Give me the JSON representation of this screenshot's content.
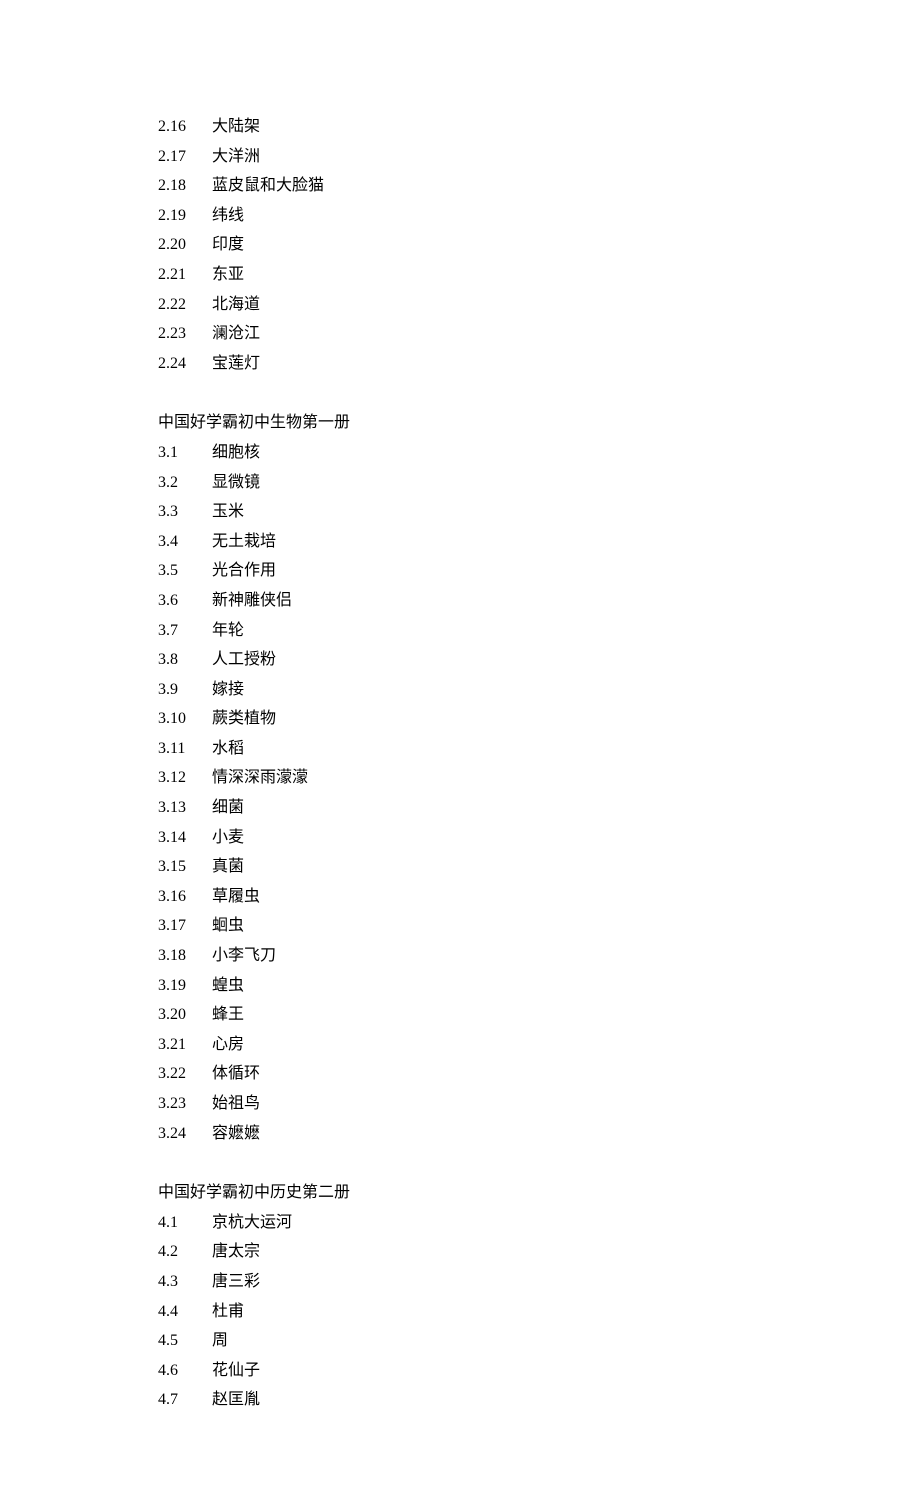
{
  "sections": [
    {
      "title": null,
      "items": [
        {
          "num": "2.16",
          "label": "大陆架"
        },
        {
          "num": "2.17",
          "label": "大洋洲"
        },
        {
          "num": "2.18",
          "label": "蓝皮鼠和大脸猫"
        },
        {
          "num": "2.19",
          "label": "纬线"
        },
        {
          "num": "2.20",
          "label": "印度"
        },
        {
          "num": "2.21",
          "label": "东亚"
        },
        {
          "num": "2.22",
          "label": "北海道"
        },
        {
          "num": "2.23",
          "label": "澜沧江"
        },
        {
          "num": "2.24",
          "label": "宝莲灯"
        }
      ]
    },
    {
      "title": "中国好学霸初中生物第一册",
      "items": [
        {
          "num": "3.1",
          "label": "细胞核"
        },
        {
          "num": "3.2",
          "label": "显微镜"
        },
        {
          "num": "3.3",
          "label": "玉米"
        },
        {
          "num": "3.4",
          "label": "无土栽培"
        },
        {
          "num": "3.5",
          "label": "光合作用"
        },
        {
          "num": "3.6",
          "label": "新神雕侠侣"
        },
        {
          "num": "3.7",
          "label": "年轮"
        },
        {
          "num": "3.8",
          "label": "人工授粉"
        },
        {
          "num": "3.9",
          "label": "嫁接"
        },
        {
          "num": "3.10",
          "label": "蕨类植物"
        },
        {
          "num": "3.11",
          "label": "水稻"
        },
        {
          "num": "3.12",
          "label": "情深深雨濛濛"
        },
        {
          "num": "3.13",
          "label": "细菌"
        },
        {
          "num": "3.14",
          "label": "小麦"
        },
        {
          "num": "3.15",
          "label": "真菌"
        },
        {
          "num": "3.16",
          "label": "草履虫"
        },
        {
          "num": "3.17",
          "label": "蛔虫"
        },
        {
          "num": "3.18",
          "label": "小李飞刀"
        },
        {
          "num": "3.19",
          "label": "蝗虫"
        },
        {
          "num": "3.20",
          "label": "蜂王"
        },
        {
          "num": "3.21",
          "label": "心房"
        },
        {
          "num": "3.22",
          "label": "体循环"
        },
        {
          "num": "3.23",
          "label": "始祖鸟"
        },
        {
          "num": "3.24",
          "label": "容嬷嬷"
        }
      ]
    },
    {
      "title": "中国好学霸初中历史第二册",
      "items": [
        {
          "num": "4.1",
          "label": "京杭大运河"
        },
        {
          "num": "4.2",
          "label": "唐太宗"
        },
        {
          "num": "4.3",
          "label": "唐三彩"
        },
        {
          "num": "4.4",
          "label": "杜甫"
        },
        {
          "num": "4.5",
          "label": "周"
        },
        {
          "num": "4.6",
          "label": "花仙子"
        },
        {
          "num": "4.7",
          "label": "赵匡胤"
        }
      ]
    }
  ]
}
